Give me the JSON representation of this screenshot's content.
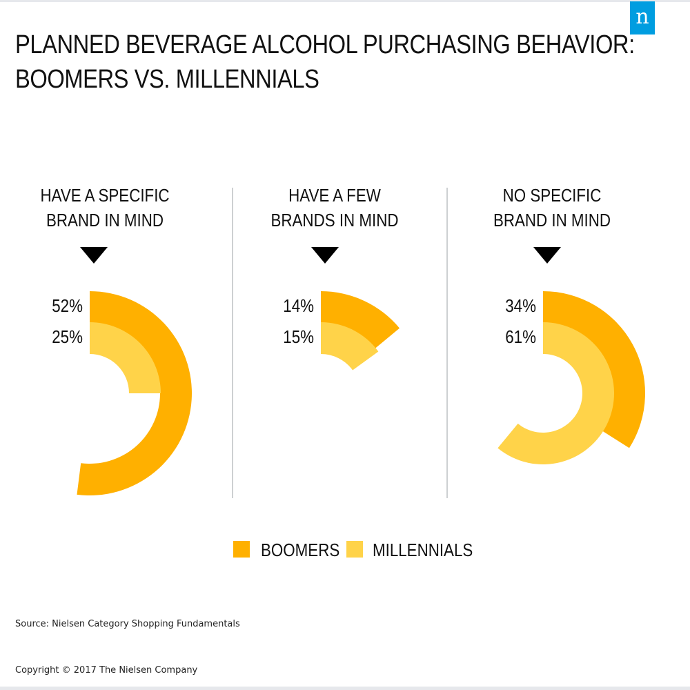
{
  "logo": {
    "glyph": "n",
    "color": "#009de0"
  },
  "title": {
    "line1": "PLANNED BEVERAGE ALCOHOL PURCHASING BEHAVIOR:",
    "line2": "BOOMERS VS. MILLENNIALS"
  },
  "chart_data": {
    "type": "radial-bar",
    "title": "PLANNED BEVERAGE ALCOHOL PURCHASING BEHAVIOR: BOOMERS VS. MILLENNIALS",
    "unit": "%",
    "categories": [
      [
        "HAVE A SPECIFIC",
        "BRAND IN MIND"
      ],
      [
        "HAVE A FEW",
        "BRANDS IN MIND"
      ],
      [
        "NO SPECIFIC",
        "BRAND IN MIND"
      ]
    ],
    "series": [
      {
        "name": "BOOMERS",
        "color": "#ffb000",
        "values": [
          52,
          14,
          34
        ],
        "labels": [
          "52%",
          "14%",
          "34%"
        ]
      },
      {
        "name": "MILLENNIALS",
        "color": "#ffd349",
        "values": [
          25,
          15,
          61
        ],
        "labels": [
          "25%",
          "15%",
          "61%"
        ]
      }
    ],
    "legend": "bottom-center"
  },
  "footer": {
    "source": "Source: Nielsen Category Shopping Fundamentals",
    "copyright": "Copyright © 2017 The Nielsen Company"
  }
}
